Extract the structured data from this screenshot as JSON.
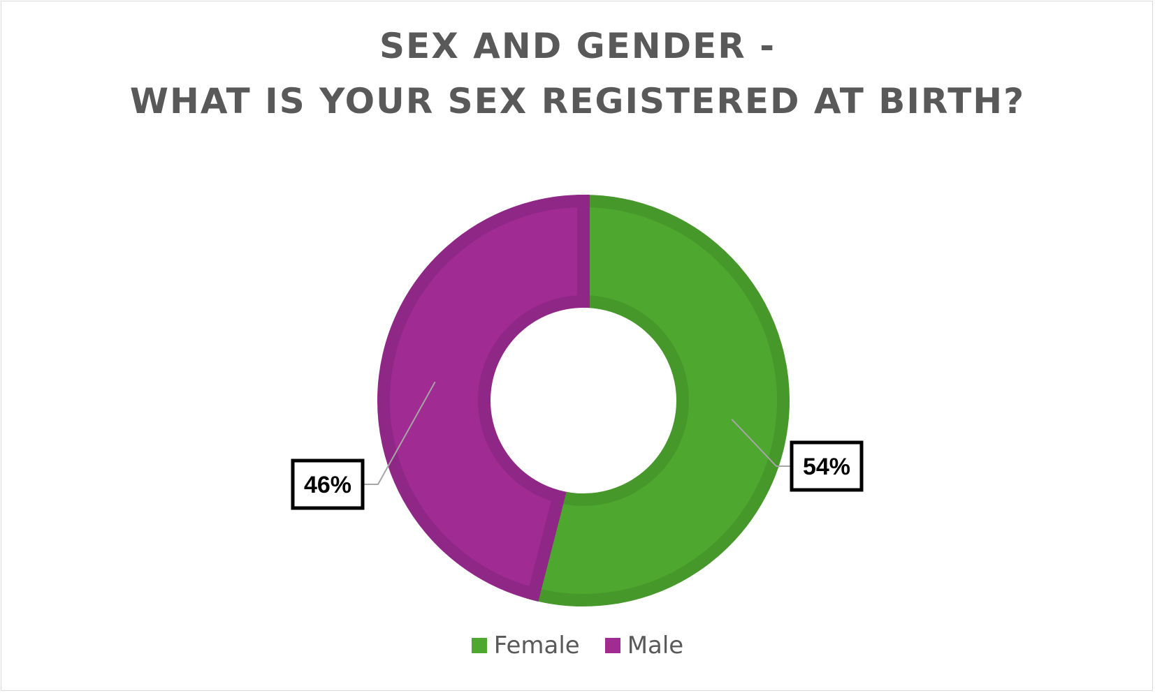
{
  "chart_data": {
    "type": "pie",
    "subtype": "donut",
    "title_lines": [
      "SEX AND GENDER -",
      "WHAT IS YOUR SEX REGISTERED AT BIRTH?"
    ],
    "categories": [
      "Female",
      "Male"
    ],
    "values": [
      54,
      46
    ],
    "data_labels": [
      "54%",
      "46%"
    ],
    "colors": [
      "#4ea72e",
      "#a02b93"
    ],
    "edge_colors": [
      "#47982a",
      "#8f2786"
    ],
    "legend_position": "bottom"
  }
}
